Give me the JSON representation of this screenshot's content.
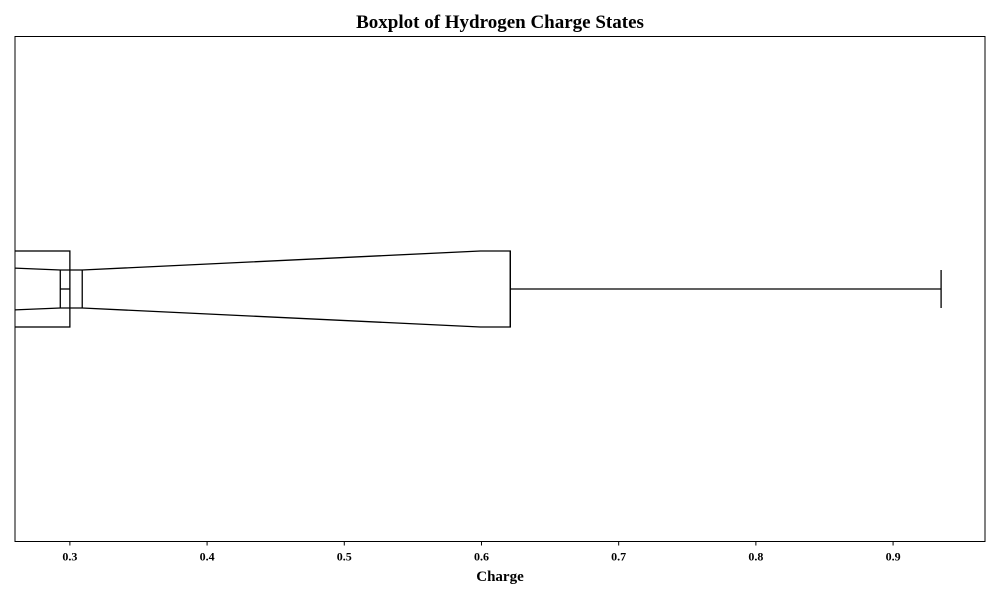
{
  "chart_data": {
    "type": "boxplot",
    "orientation": "horizontal",
    "notched": true,
    "title": "Boxplot of Hydrogen Charge States",
    "xlabel": "Charge",
    "ylabel": "",
    "xlim": [
      0.26,
      0.967
    ],
    "xticks": [
      0.3,
      0.4,
      0.5,
      0.6,
      0.7,
      0.8,
      0.9
    ],
    "xtick_labels": [
      "0.3",
      "0.4",
      "0.5",
      "0.6",
      "0.7",
      "0.8",
      "0.9"
    ],
    "grid": false,
    "yticks_visible": false,
    "box": {
      "q1": 0.24,
      "median": 0.301,
      "q3": 0.621,
      "notch_low": 0.293,
      "notch_high": 0.309,
      "whisker_low": 0.24,
      "whisker_high": 0.935
    },
    "colors": {
      "box_edge": "#000000",
      "box_fill": "#ffffff"
    }
  }
}
